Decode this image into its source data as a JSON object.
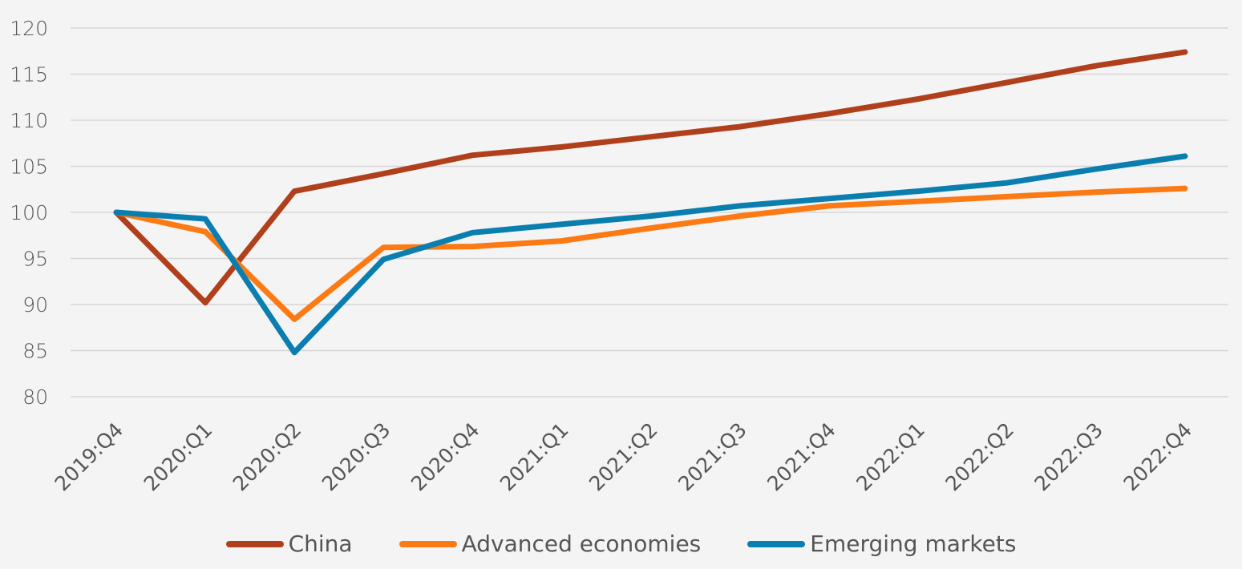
{
  "chart_data": {
    "type": "line",
    "title": "",
    "xlabel": "",
    "ylabel": "",
    "ylim": [
      80,
      120
    ],
    "yticks": [
      80,
      85,
      90,
      95,
      100,
      105,
      110,
      115,
      120
    ],
    "grid": true,
    "legend_position": "bottom",
    "categories": [
      "2019:Q4",
      "2020:Q1",
      "2020:Q2",
      "2020:Q3",
      "2020:Q4",
      "2021:Q1",
      "2021:Q2",
      "2021:Q3",
      "2021:Q4",
      "2022:Q1",
      "2022:Q2",
      "2022:Q3",
      "2022:Q4"
    ],
    "series": [
      {
        "name": "China",
        "color": "#b0401c",
        "values": [
          100,
          90.2,
          102.3,
          104.2,
          106.2,
          107.1,
          108.2,
          109.3,
          110.7,
          112.3,
          114.1,
          115.9,
          117.4
        ]
      },
      {
        "name": "Advanced economies",
        "color": "#fc7a14",
        "values": [
          100,
          97.9,
          88.4,
          96.2,
          96.3,
          96.9,
          98.3,
          99.6,
          100.7,
          101.2,
          101.7,
          102.2,
          102.6
        ]
      },
      {
        "name": "Emerging markets",
        "color": "#0b7eb0",
        "values": [
          100,
          99.3,
          84.8,
          94.9,
          97.8,
          98.7,
          99.6,
          100.7,
          101.5,
          102.3,
          103.2,
          104.7,
          106.1
        ]
      }
    ]
  }
}
